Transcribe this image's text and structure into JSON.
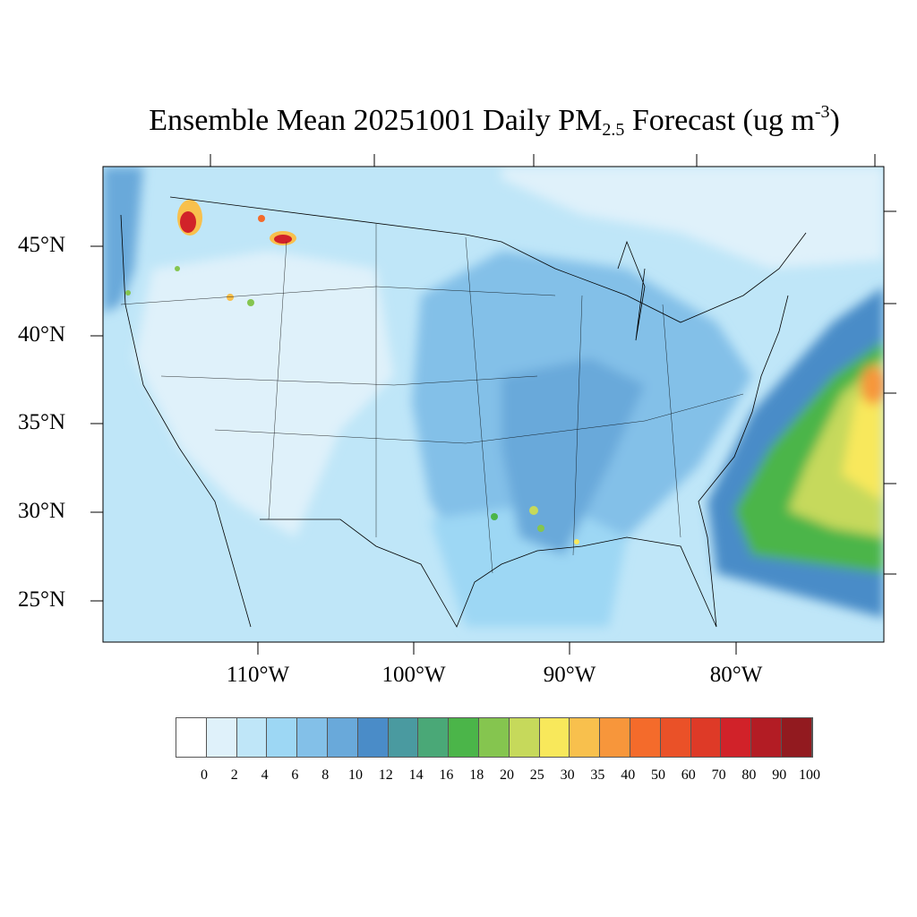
{
  "title": {
    "prefix": "Ensemble Mean 20251001 Daily PM",
    "subscript": "2.5",
    "middle": " Forecast (ug m",
    "superscript": "-3",
    "suffix": ")"
  },
  "latitude_labels": [
    "45°N",
    "40°N",
    "35°N",
    "30°N",
    "25°N"
  ],
  "longitude_labels": [
    "110°W",
    "100°W",
    "90°W",
    "80°W"
  ],
  "colorbar": {
    "labels": [
      "0",
      "2",
      "4",
      "6",
      "8",
      "10",
      "12",
      "14",
      "16",
      "18",
      "20",
      "25",
      "30",
      "35",
      "40",
      "50",
      "60",
      "70",
      "80",
      "90",
      "100"
    ],
    "colors": [
      "#ffffff",
      "#dff1fa",
      "#bfe6f8",
      "#9dd7f4",
      "#83c0e8",
      "#69a9da",
      "#4a8cc8",
      "#4a9aa0",
      "#4aa877",
      "#4bb549",
      "#85c54f",
      "#c6d95b",
      "#f8e85b",
      "#f8c04d",
      "#f7963b",
      "#f46b2b",
      "#ea5128",
      "#de3a27",
      "#d12229",
      "#b31c24",
      "#921a1f"
    ]
  }
}
